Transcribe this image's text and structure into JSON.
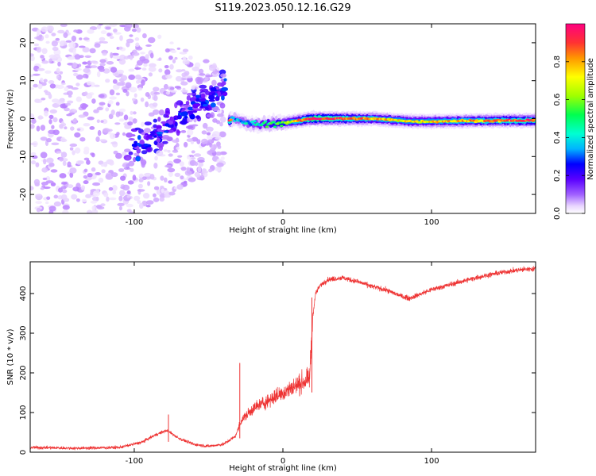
{
  "title": "S119.2023.050.12.16.G29",
  "chart_data": [
    {
      "type": "heatmap",
      "title": "S119.2023.050.12.16.G29",
      "xlabel": "Height of straight line (km)",
      "ylabel": "Frequency (Hz)",
      "xlim": [
        -170,
        170
      ],
      "ylim": [
        -25,
        25
      ],
      "xticks": [
        -100,
        0,
        100
      ],
      "xtick_labels": [
        "-100",
        "0",
        "100"
      ],
      "yticks": [
        -20,
        -10,
        0,
        10,
        20
      ],
      "ytick_labels": [
        "-20",
        "-10",
        "0",
        "10",
        "20"
      ],
      "colorbar": {
        "label": "Normalized spectral amplitude",
        "range": [
          0,
          1
        ],
        "ticks": [
          0.0,
          0.2,
          0.4,
          0.6,
          0.8
        ],
        "tick_labels": [
          "0.0",
          "0.2",
          "0.4",
          "0.6",
          "0.8"
        ],
        "colormap": [
          "#ffffff",
          "#e8d4ff",
          "#c08cff",
          "#6a00ff",
          "#0000ff",
          "#00b4ff",
          "#00ffd2",
          "#00ff50",
          "#a0ff00",
          "#ffff00",
          "#ff9600",
          "#ff3232",
          "#ff0096"
        ]
      },
      "ridge": {
        "description_points": [
          {
            "x": -35,
            "y": 0,
            "amp": 0.3
          },
          {
            "x": -20,
            "y": -1.5,
            "amp": 0.35
          },
          {
            "x": 0,
            "y": -1.2,
            "amp": 0.55
          },
          {
            "x": 20,
            "y": 0,
            "amp": 0.9
          },
          {
            "x": 60,
            "y": 0,
            "amp": 0.7
          },
          {
            "x": 90,
            "y": -0.8,
            "amp": 0.65
          },
          {
            "x": 120,
            "y": -0.6,
            "amp": 0.7
          },
          {
            "x": 165,
            "y": -0.5,
            "amp": 0.8
          }
        ]
      },
      "grid": false
    },
    {
      "type": "line",
      "xlabel": "Height of straight line (km)",
      "ylabel": "SNR (10 * v/v)",
      "xlim": [
        -170,
        170
      ],
      "ylim": [
        0,
        480
      ],
      "xticks": [
        -100,
        0,
        100
      ],
      "xtick_labels": [
        "-100",
        "0",
        "100"
      ],
      "yticks": [
        0,
        100,
        200,
        300,
        400
      ],
      "ytick_labels": [
        "0",
        "100",
        "200",
        "300",
        "400"
      ],
      "series": [
        {
          "color": "#ee3333",
          "x": [
            -170,
            -140,
            -110,
            -95,
            -85,
            -78,
            -70,
            -60,
            -50,
            -40,
            -32,
            -28,
            -20,
            -10,
            0,
            10,
            18,
            20,
            22,
            25,
            30,
            40,
            50,
            60,
            70,
            80,
            85,
            90,
            100,
            110,
            120,
            130,
            140,
            150,
            160,
            170
          ],
          "values": [
            12,
            10,
            12,
            25,
            45,
            55,
            35,
            20,
            15,
            20,
            40,
            80,
            110,
            130,
            150,
            170,
            185,
            340,
            400,
            420,
            435,
            440,
            430,
            418,
            408,
            393,
            388,
            395,
            410,
            420,
            430,
            440,
            448,
            455,
            460,
            463
          ]
        }
      ],
      "spikes": [
        {
          "x": -77,
          "y": 95
        },
        {
          "x": -29,
          "y": 225
        },
        {
          "x": 19.5,
          "y": 390
        }
      ],
      "grid": false
    }
  ]
}
